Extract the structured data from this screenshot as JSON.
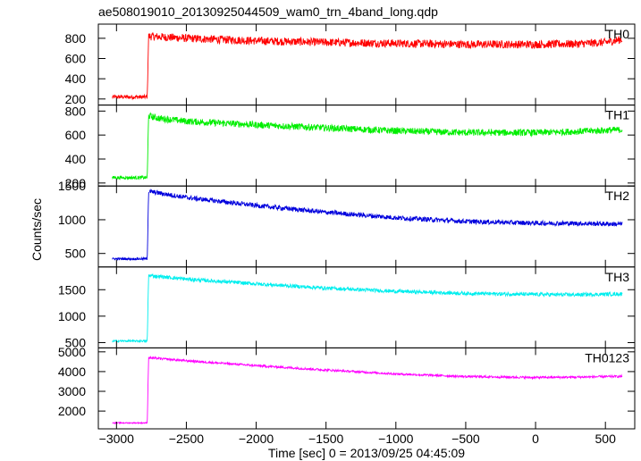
{
  "chart_data": {
    "type": "line",
    "title": "ae508019010_20130925044509_wam0_trn_4band_long.qdp",
    "xlabel": "Time [sec] 0 = 2013/09/25 04:45:09",
    "ylabel": "Counts/sec",
    "xlim": [
      -3130,
      710
    ],
    "x_ticks": [
      -3000,
      -2500,
      -2000,
      -1500,
      -1000,
      -500,
      0,
      500
    ],
    "x_tick_labels": [
      "−3000",
      "−2500",
      "−2000",
      "−1500",
      "−1000",
      "−500",
      "0",
      "500"
    ],
    "grid": false,
    "series": [
      {
        "name": "TH0",
        "color": "#ff0000",
        "ylim": [
          140,
          940
        ],
        "y_ticks": [
          200,
          400,
          600,
          800
        ],
        "points": [
          [
            -3030,
            220
          ],
          [
            -2780,
            220
          ],
          [
            -2770,
            820
          ],
          [
            -2500,
            800
          ],
          [
            -2000,
            775
          ],
          [
            -1500,
            760
          ],
          [
            -1000,
            750
          ],
          [
            -500,
            740
          ],
          [
            0,
            740
          ],
          [
            300,
            745
          ],
          [
            500,
            760
          ],
          [
            620,
            790
          ]
        ],
        "noise": 40
      },
      {
        "name": "TH1",
        "color": "#00ee00",
        "ylim": [
          175,
          850
        ],
        "y_ticks": [
          200,
          400,
          600,
          800
        ],
        "points": [
          [
            -3030,
            245
          ],
          [
            -2780,
            245
          ],
          [
            -2770,
            760
          ],
          [
            -2700,
            740
          ],
          [
            -2500,
            715
          ],
          [
            -2000,
            685
          ],
          [
            -1500,
            660
          ],
          [
            -1000,
            635
          ],
          [
            -500,
            620
          ],
          [
            0,
            620
          ],
          [
            300,
            630
          ],
          [
            620,
            645
          ]
        ],
        "noise": 28
      },
      {
        "name": "TH2",
        "color": "#0000dd",
        "ylim": [
          300,
          1500
        ],
        "y_ticks": [
          500,
          1000,
          1500
        ],
        "points": [
          [
            -3030,
            420
          ],
          [
            -2780,
            420
          ],
          [
            -2770,
            1420
          ],
          [
            -2500,
            1330
          ],
          [
            -2000,
            1210
          ],
          [
            -1500,
            1110
          ],
          [
            -1000,
            1030
          ],
          [
            -500,
            975
          ],
          [
            0,
            950
          ],
          [
            300,
            945
          ],
          [
            620,
            935
          ]
        ],
        "noise": 35
      },
      {
        "name": "TH3",
        "color": "#00eeee",
        "ylim": [
          400,
          1930
        ],
        "y_ticks": [
          500,
          1000,
          1500
        ],
        "points": [
          [
            -3030,
            530
          ],
          [
            -2780,
            530
          ],
          [
            -2770,
            1770
          ],
          [
            -2500,
            1700
          ],
          [
            -2000,
            1610
          ],
          [
            -1500,
            1530
          ],
          [
            -1000,
            1470
          ],
          [
            -500,
            1430
          ],
          [
            0,
            1410
          ],
          [
            300,
            1405
          ],
          [
            620,
            1420
          ]
        ],
        "noise": 35
      },
      {
        "name": "TH0123",
        "color": "#ff00ff",
        "ylim": [
          1100,
          5200
        ],
        "y_ticks": [
          2000,
          3000,
          4000,
          5000
        ],
        "points": [
          [
            -3030,
            1400
          ],
          [
            -2780,
            1400
          ],
          [
            -2770,
            4700
          ],
          [
            -2500,
            4550
          ],
          [
            -2000,
            4300
          ],
          [
            -1500,
            4080
          ],
          [
            -1000,
            3880
          ],
          [
            -500,
            3750
          ],
          [
            0,
            3700
          ],
          [
            300,
            3720
          ],
          [
            620,
            3760
          ]
        ],
        "noise": 55
      }
    ]
  }
}
